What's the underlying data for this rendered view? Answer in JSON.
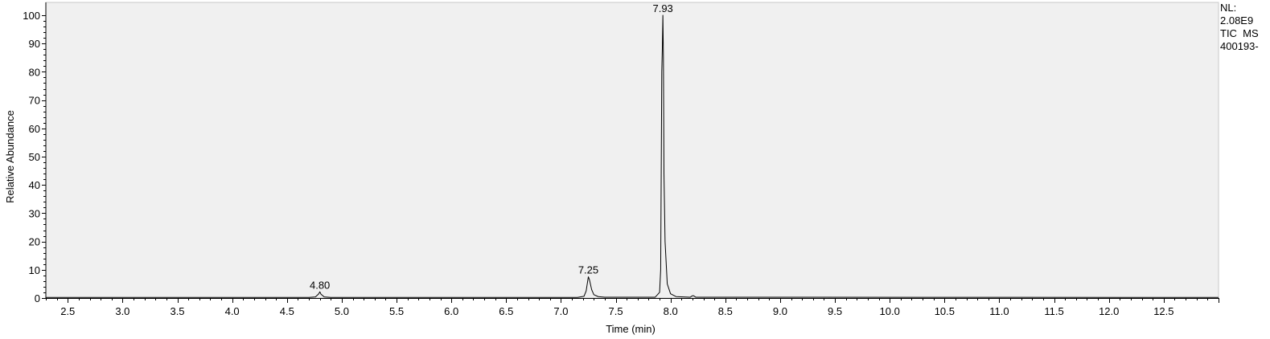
{
  "chart_data": {
    "type": "line",
    "xlabel": "Time (min)",
    "ylabel": "Relative Abundance",
    "xlim": [
      2.3,
      13.0
    ],
    "ylim": [
      0,
      100
    ],
    "x_ticks": [
      "2.5",
      "3.0",
      "3.5",
      "4.0",
      "4.5",
      "5.0",
      "5.5",
      "6.0",
      "6.5",
      "7.0",
      "7.5",
      "8.0",
      "8.5",
      "9.0",
      "9.5",
      "10.0",
      "10.5",
      "11.0",
      "11.5",
      "12.0",
      "12.5"
    ],
    "y_ticks": [
      "0",
      "10",
      "20",
      "30",
      "40",
      "50",
      "60",
      "70",
      "80",
      "90",
      "100"
    ],
    "series": [
      {
        "x": [
          2.3,
          4.7,
          4.76,
          4.79,
          4.8,
          4.81,
          4.84,
          4.9,
          7.15,
          7.21,
          7.23,
          7.25,
          7.26,
          7.28,
          7.3,
          7.34,
          7.4,
          7.86,
          7.9,
          7.91,
          7.92,
          7.925,
          7.93,
          7.935,
          7.94,
          7.95,
          7.97,
          8.0,
          8.05,
          8.18,
          8.2,
          8.21,
          8.23,
          13.0
        ],
        "y": [
          0.2,
          0.2,
          0.4,
          1.5,
          2.2,
          1.4,
          0.4,
          0.2,
          0.2,
          0.6,
          2.5,
          7.5,
          6.5,
          3.0,
          1.2,
          0.5,
          0.3,
          0.3,
          2.0,
          10.0,
          80.0,
          88.0,
          100.0,
          85.0,
          44.0,
          20.0,
          5.0,
          1.5,
          0.5,
          0.3,
          0.8,
          0.8,
          0.3,
          0.2
        ]
      }
    ],
    "peak_labels": [
      {
        "x": 4.8,
        "y": 2.2,
        "text": "4.80"
      },
      {
        "x": 7.25,
        "y": 7.5,
        "text": "7.25"
      },
      {
        "x": 7.93,
        "y": 100.0,
        "text": "7.93"
      }
    ],
    "grid": false,
    "plot_background": "#f0f0f0",
    "line_color": "#000000"
  },
  "info": {
    "nl_label": "NL:",
    "nl_value": "2.08E9",
    "scan_type": "TIC  MS",
    "file_name": "400193-"
  }
}
